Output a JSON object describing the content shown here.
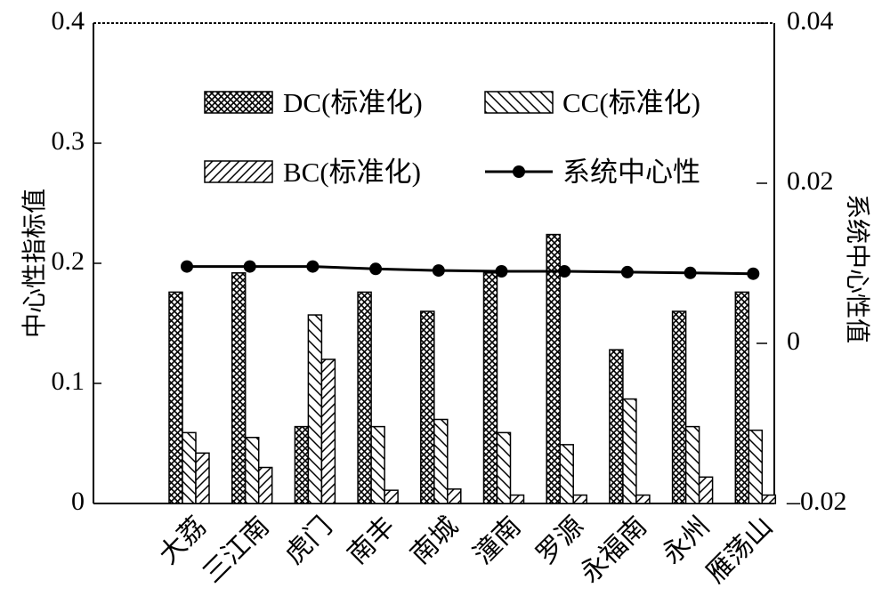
{
  "chart_data": {
    "type": "bar",
    "title": "",
    "xlabel": "",
    "ylabel": "中心性指标值",
    "y2label": "系统中心性值",
    "ylim": [
      0,
      0.4
    ],
    "y2lim": [
      -0.02,
      0.04
    ],
    "yticks": [
      "0",
      "0.1",
      "0.2",
      "0.3",
      "0.4"
    ],
    "y2ticks": [
      "-0.02",
      "0",
      "0.02",
      "0.04"
    ],
    "grid": false,
    "legend_position": "top",
    "categories": [
      "大荔",
      "三江南",
      "虎门",
      "南丰",
      "南城",
      "潼南",
      "罗源",
      "永福南",
      "永州",
      "雁荡山"
    ],
    "series": [
      {
        "name": "DC(标准化)",
        "axis": "left",
        "pattern": "crosshatch",
        "values": [
          0.176,
          0.192,
          0.064,
          0.176,
          0.16,
          0.192,
          0.224,
          0.128,
          0.16,
          0.176
        ]
      },
      {
        "name": "CC(标准化)",
        "axis": "left",
        "pattern": "backslash",
        "values": [
          0.059,
          0.055,
          0.157,
          0.064,
          0.07,
          0.059,
          0.049,
          0.087,
          0.064,
          0.061
        ]
      },
      {
        "name": "BC(标准化)",
        "axis": "left",
        "pattern": "slash",
        "values": [
          0.042,
          0.03,
          0.12,
          0.011,
          0.012,
          0.007,
          0.007,
          0.007,
          0.022,
          0.007
        ]
      },
      {
        "name": "系统中心性",
        "axis": "right",
        "type": "line",
        "marker": "circle",
        "values": [
          0.0096,
          0.0096,
          0.0096,
          0.0093,
          0.0091,
          0.009,
          0.009,
          0.0089,
          0.0088,
          0.0087
        ]
      }
    ]
  }
}
